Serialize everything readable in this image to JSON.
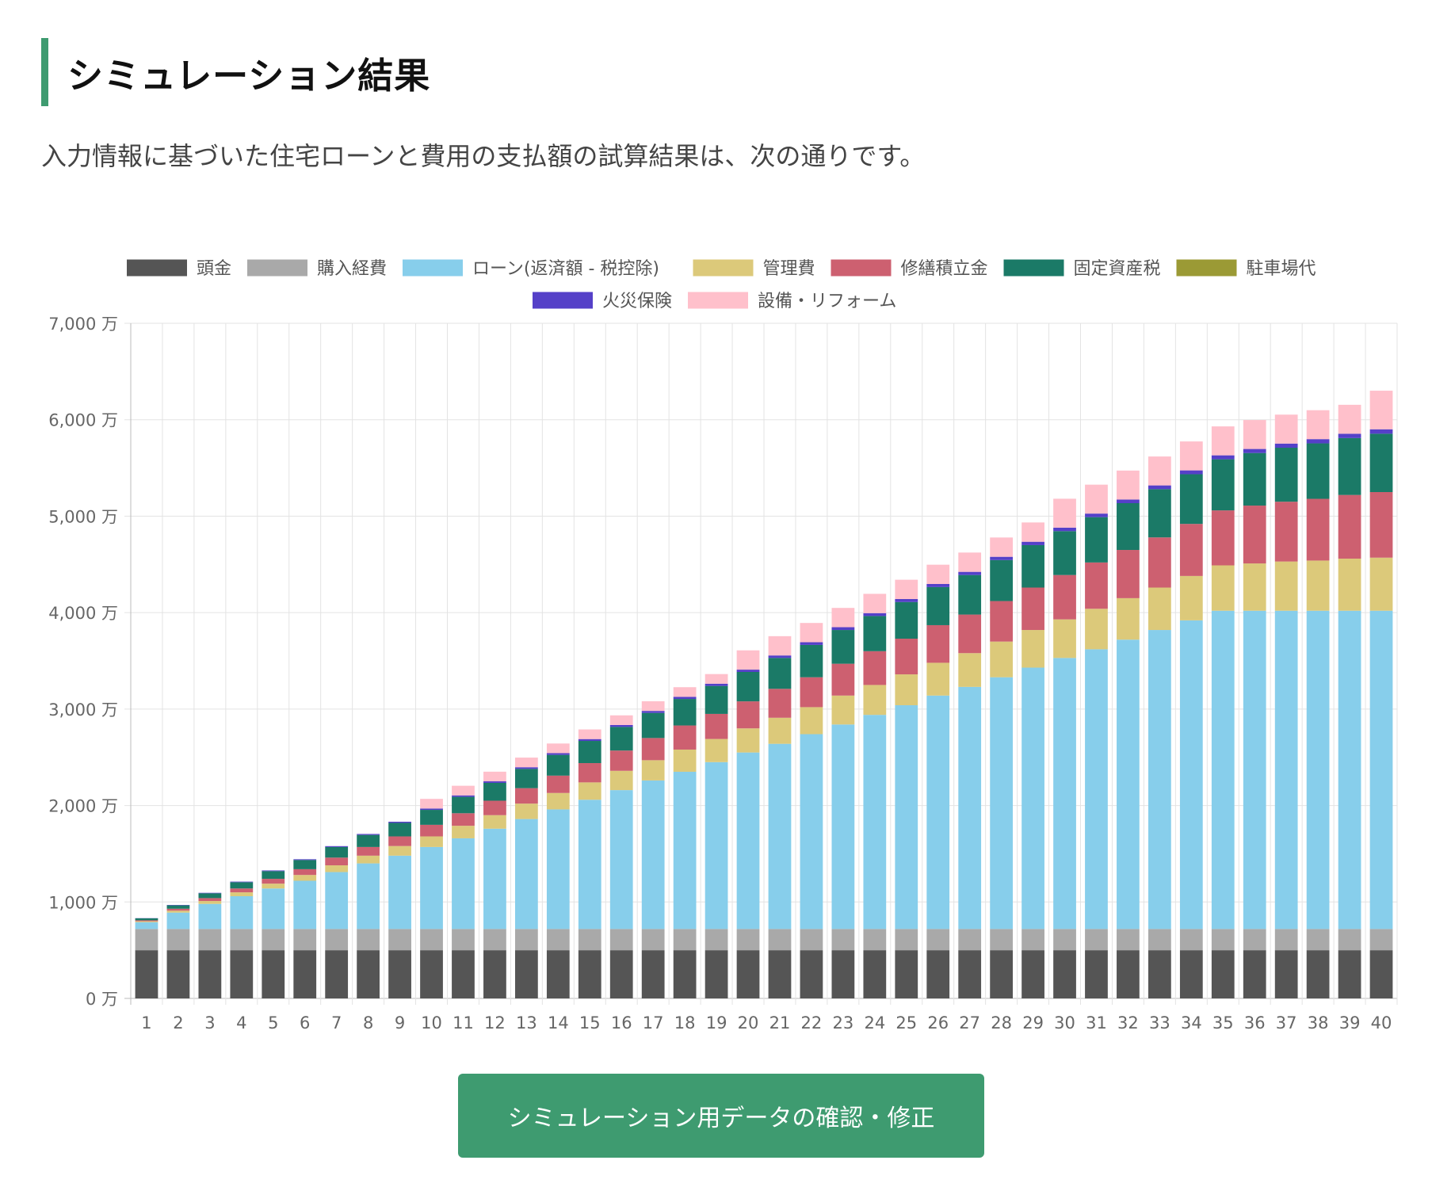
{
  "header": {
    "title": "シミュレーション結果",
    "subtitle": "入力情報に基づいた住宅ローンと費用の支払額の試算結果は、次の通りです。"
  },
  "button": {
    "label": "シミュレーション用データの確認・修正"
  },
  "chart_data": {
    "type": "bar",
    "stacked": true,
    "title": "",
    "xlabel": "",
    "ylabel": "",
    "ylim": [
      0,
      7000
    ],
    "y_unit": "万",
    "y_ticks": [
      "0 万",
      "1,000 万",
      "2,000 万",
      "3,000 万",
      "4,000 万",
      "5,000 万",
      "6,000 万",
      "7,000 万"
    ],
    "y_tick_values": [
      0,
      1000,
      2000,
      3000,
      4000,
      5000,
      6000,
      7000
    ],
    "grid": true,
    "legend_position": "top",
    "categories": [
      "1",
      "2",
      "3",
      "4",
      "5",
      "6",
      "7",
      "8",
      "9",
      "10",
      "11",
      "12",
      "13",
      "14",
      "15",
      "16",
      "17",
      "18",
      "19",
      "20",
      "21",
      "22",
      "23",
      "24",
      "25",
      "26",
      "27",
      "28",
      "29",
      "30",
      "31",
      "32",
      "33",
      "34",
      "35",
      "36",
      "37",
      "38",
      "39",
      "40"
    ],
    "series": [
      {
        "name": "頭金",
        "color": "#555555",
        "values": [
          500,
          500,
          500,
          500,
          500,
          500,
          500,
          500,
          500,
          500,
          500,
          500,
          500,
          500,
          500,
          500,
          500,
          500,
          500,
          500,
          500,
          500,
          500,
          500,
          500,
          500,
          500,
          500,
          500,
          500,
          500,
          500,
          500,
          500,
          500,
          500,
          500,
          500,
          500,
          500
        ]
      },
      {
        "name": "購入経費",
        "color": "#a9a9a9",
        "values": [
          220,
          220,
          220,
          220,
          220,
          220,
          220,
          220,
          220,
          220,
          220,
          220,
          220,
          220,
          220,
          220,
          220,
          220,
          220,
          220,
          220,
          220,
          220,
          220,
          220,
          220,
          220,
          220,
          220,
          220,
          220,
          220,
          220,
          220,
          220,
          220,
          220,
          220,
          220,
          220
        ]
      },
      {
        "name": "ローン(返済額 - 税控除)",
        "color": "#87ceeb",
        "values": [
          70,
          170,
          260,
          340,
          420,
          500,
          590,
          680,
          760,
          850,
          940,
          1040,
          1140,
          1240,
          1340,
          1440,
          1540,
          1630,
          1730,
          1830,
          1920,
          2020,
          2120,
          2220,
          2320,
          2420,
          2510,
          2610,
          2710,
          2810,
          2900,
          3000,
          3100,
          3200,
          3300,
          3300,
          3300,
          3300,
          3300,
          3300
        ]
      },
      {
        "name": "管理費",
        "color": "#dcc97a",
        "values": [
          10,
          20,
          30,
          40,
          50,
          60,
          70,
          80,
          100,
          110,
          130,
          140,
          160,
          170,
          180,
          200,
          210,
          230,
          240,
          250,
          270,
          280,
          300,
          310,
          320,
          340,
          350,
          370,
          390,
          400,
          420,
          430,
          440,
          460,
          470,
          490,
          510,
          520,
          540,
          550
        ]
      },
      {
        "name": "修繕積立金",
        "color": "#cd6070",
        "values": [
          10,
          20,
          30,
          40,
          50,
          60,
          80,
          90,
          100,
          120,
          130,
          150,
          160,
          180,
          200,
          210,
          230,
          250,
          260,
          280,
          300,
          310,
          330,
          350,
          370,
          390,
          400,
          420,
          440,
          460,
          480,
          500,
          520,
          540,
          570,
          600,
          620,
          640,
          660,
          680
        ]
      },
      {
        "name": "固定資産税",
        "color": "#1b7a67",
        "values": [
          20,
          35,
          50,
          65,
          80,
          95,
          110,
          125,
          140,
          155,
          170,
          185,
          200,
          215,
          230,
          245,
          260,
          275,
          290,
          305,
          320,
          335,
          350,
          365,
          380,
          395,
          410,
          425,
          440,
          455,
          470,
          485,
          500,
          515,
          530,
          545,
          560,
          575,
          590,
          605
        ]
      },
      {
        "name": "駐車場代",
        "color": "#9b9a35",
        "values": [
          0,
          0,
          0,
          0,
          0,
          0,
          0,
          0,
          0,
          0,
          0,
          0,
          0,
          0,
          0,
          0,
          0,
          0,
          0,
          0,
          0,
          0,
          0,
          0,
          0,
          0,
          0,
          0,
          0,
          0,
          0,
          0,
          0,
          0,
          0,
          0,
          0,
          0,
          0,
          0
        ]
      },
      {
        "name": "火災保険",
        "color": "#5540c8",
        "values": [
          2,
          4,
          5,
          6,
          7,
          8,
          9,
          10,
          12,
          14,
          15,
          16,
          17,
          18,
          19,
          20,
          21,
          22,
          23,
          24,
          26,
          28,
          29,
          30,
          31,
          32,
          33,
          34,
          35,
          36,
          37,
          38,
          39,
          40,
          41,
          42,
          43,
          44,
          45,
          46
        ]
      },
      {
        "name": "設備・リフォーム",
        "color": "#ffc0cb",
        "values": [
          0,
          0,
          0,
          0,
          0,
          0,
          0,
          0,
          0,
          100,
          100,
          100,
          100,
          100,
          100,
          100,
          100,
          100,
          100,
          200,
          200,
          200,
          200,
          200,
          200,
          200,
          200,
          200,
          200,
          300,
          300,
          300,
          300,
          300,
          300,
          300,
          300,
          300,
          300,
          400
        ]
      }
    ]
  }
}
